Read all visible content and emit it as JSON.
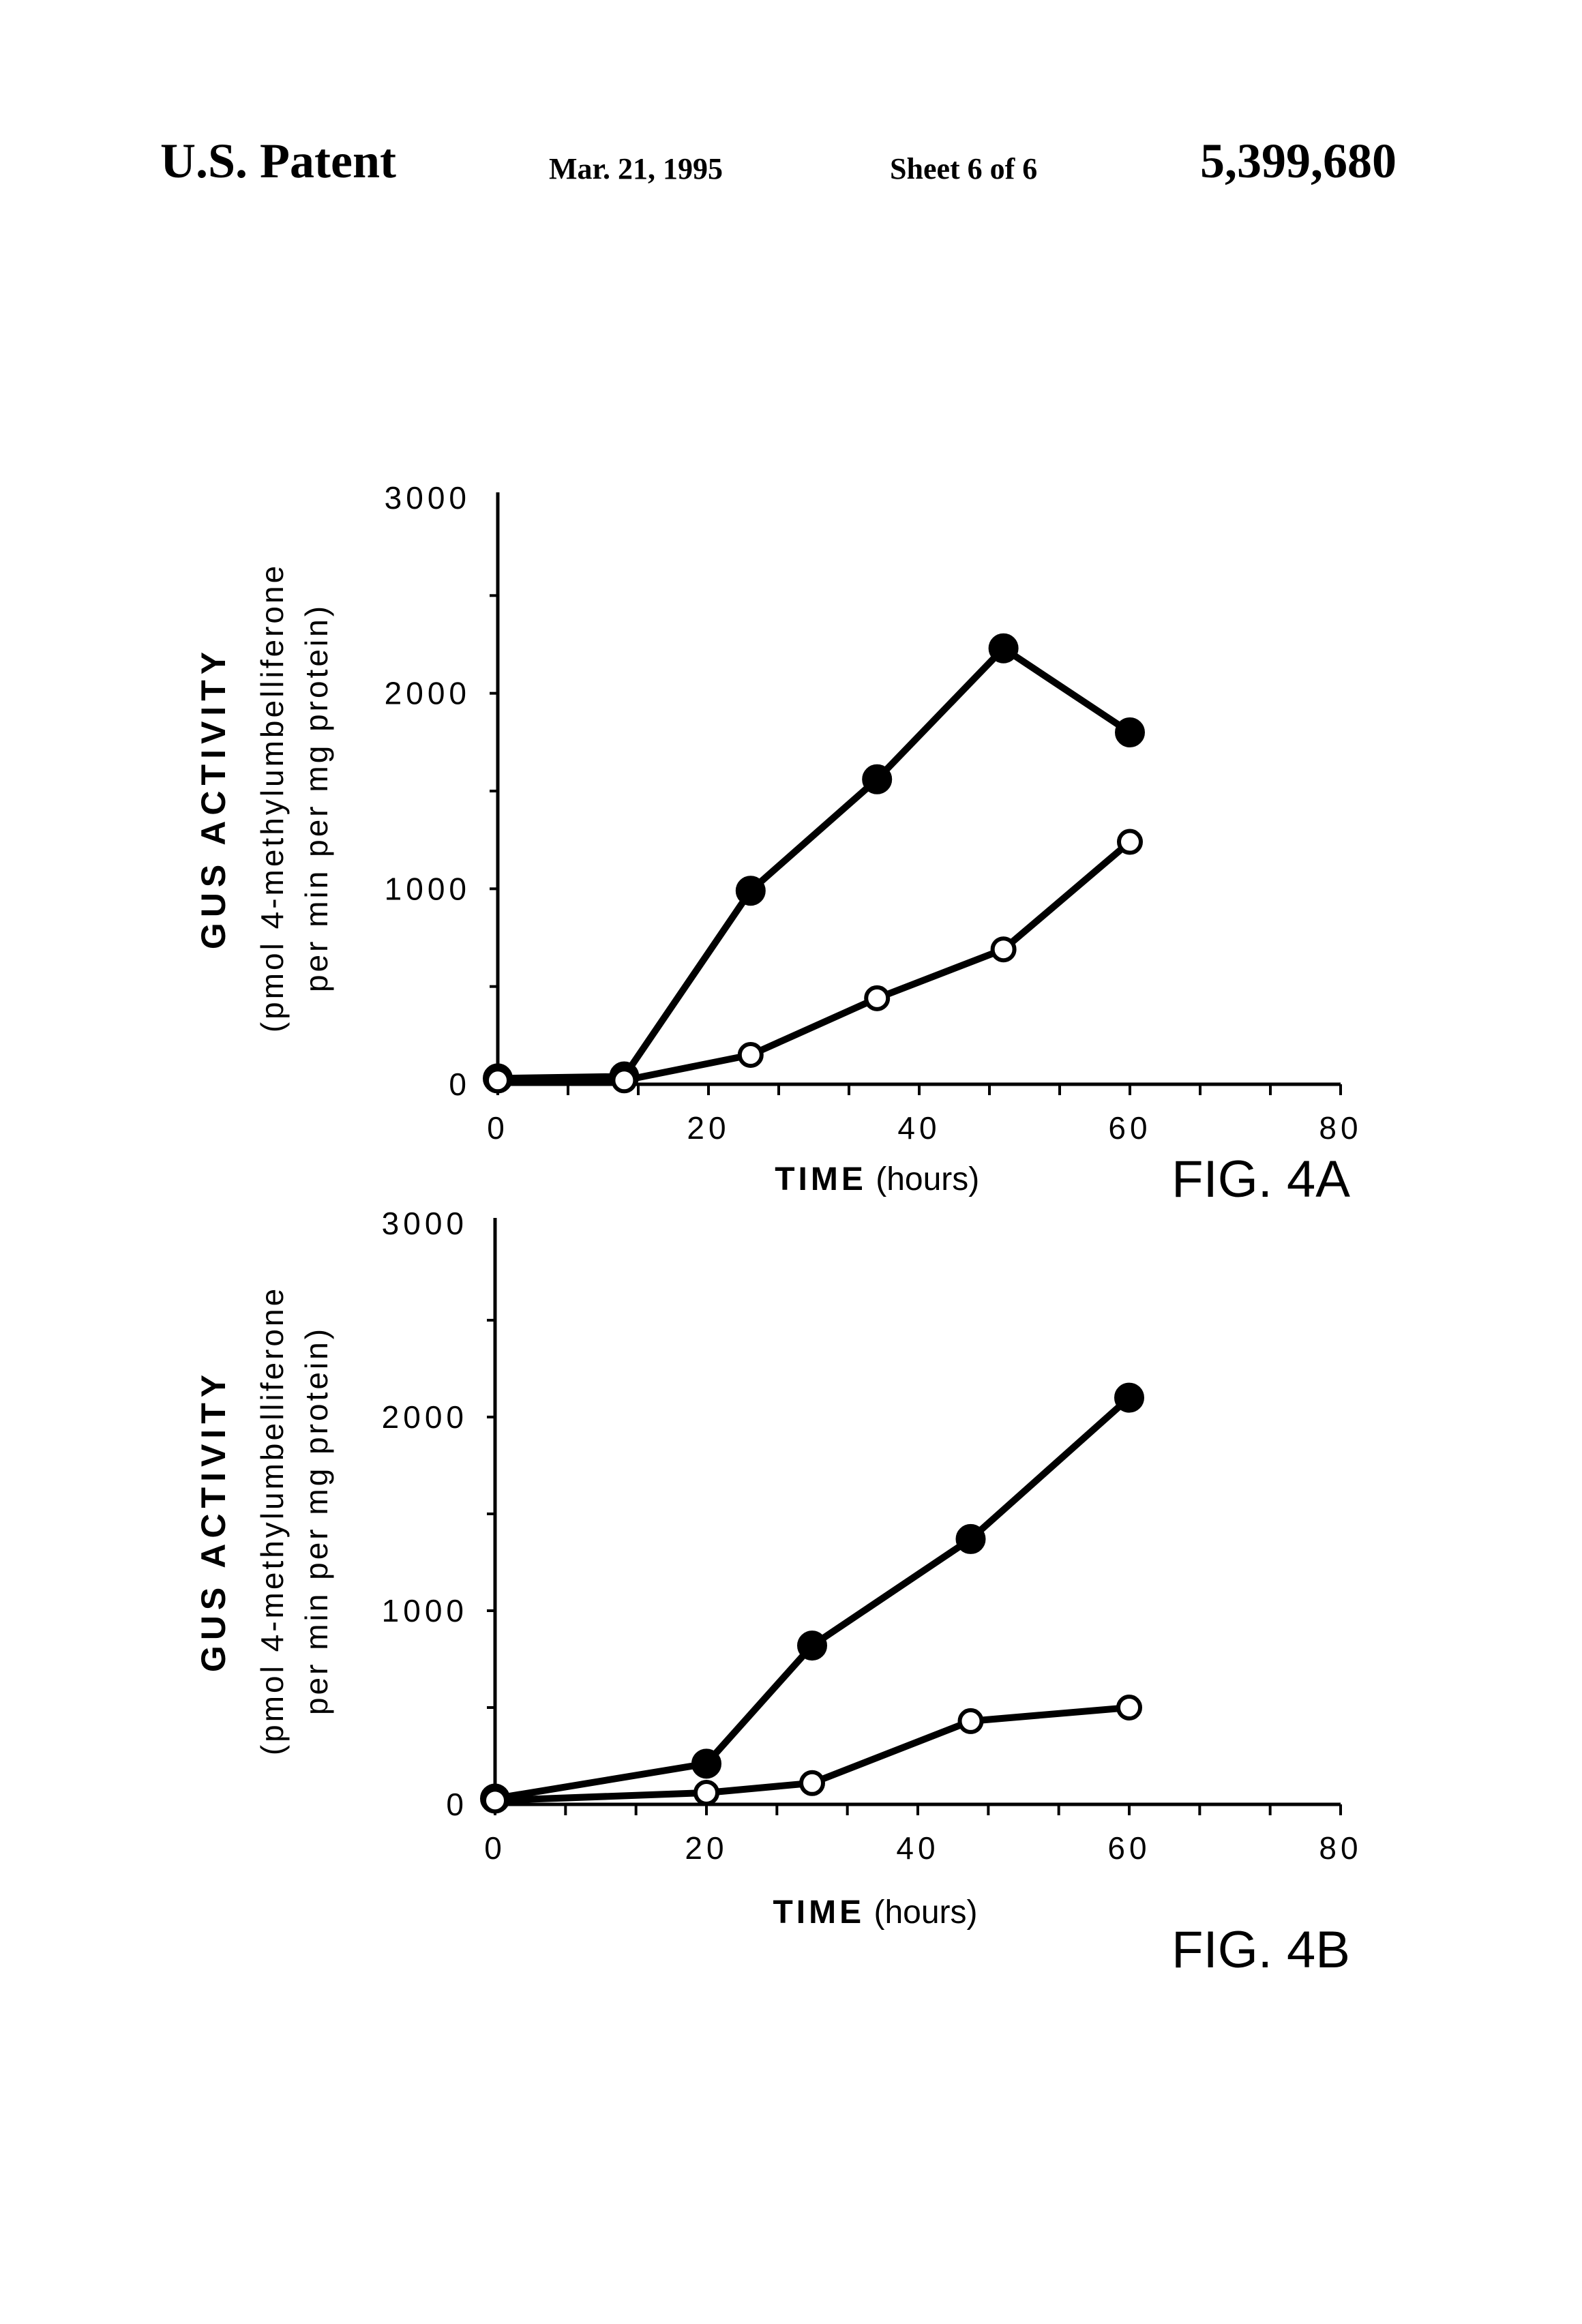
{
  "header": {
    "left": "U.S. Patent",
    "date": "Mar. 21, 1995",
    "sheet": "Sheet 6 of 6",
    "number": "5,399,680"
  },
  "chart_data": [
    {
      "type": "line",
      "title": "FIG. 4A",
      "xlabel_bold": "TIME",
      "xlabel_rest": "(hours)",
      "ylabel": "GUS ACTIVITY",
      "ylabel_units_1": "(pmol 4-methylumbelliferone",
      "ylabel_units_2": "per min per mg protein)",
      "xlim": [
        0,
        80
      ],
      "ylim": [
        0,
        3000
      ],
      "xticks": [
        "0",
        "20",
        "40",
        "60",
        "80"
      ],
      "yticks": [
        "0",
        "1000",
        "2000",
        "3000"
      ],
      "grid": false,
      "series": [
        {
          "name": "filled circles",
          "marker": "filled",
          "x": [
            0,
            12,
            24,
            36,
            48,
            60
          ],
          "y": [
            30,
            40,
            990,
            1560,
            2230,
            1800
          ]
        },
        {
          "name": "open circles",
          "marker": "open",
          "x": [
            0,
            12,
            24,
            36,
            48,
            60
          ],
          "y": [
            20,
            20,
            150,
            440,
            690,
            1240
          ]
        }
      ]
    },
    {
      "type": "line",
      "title": "FIG. 4B",
      "xlabel_bold": "TIME",
      "xlabel_rest": "(hours)",
      "ylabel": "GUS ACTIVITY",
      "ylabel_units_1": "(pmol 4-methylumbelliferone",
      "ylabel_units_2": "per min per mg protein)",
      "xlim": [
        0,
        80
      ],
      "ylim": [
        0,
        3000
      ],
      "xticks": [
        "0",
        "20",
        "40",
        "60",
        "80"
      ],
      "yticks": [
        "0",
        "1000",
        "2000",
        "3000"
      ],
      "grid": false,
      "series": [
        {
          "name": "filled circles",
          "marker": "filled",
          "x": [
            0,
            20,
            30,
            45,
            60
          ],
          "y": [
            30,
            210,
            820,
            1370,
            2100
          ]
        },
        {
          "name": "open circles",
          "marker": "open",
          "x": [
            0,
            20,
            30,
            45,
            60
          ],
          "y": [
            20,
            60,
            110,
            430,
            500
          ]
        }
      ]
    }
  ]
}
